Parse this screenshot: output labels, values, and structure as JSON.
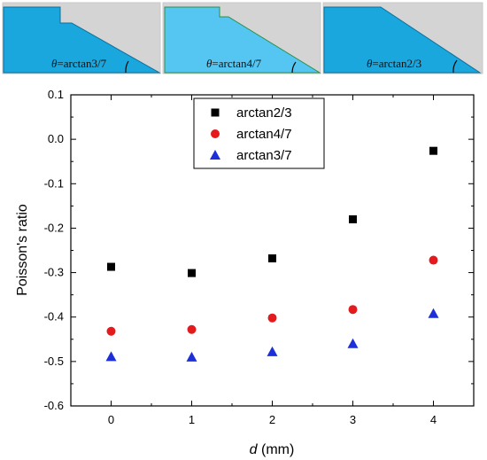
{
  "panels": [
    {
      "label_symbol": "θ",
      "label_text": "=arctan3/7",
      "fill": "#1aa7dd"
    },
    {
      "label_symbol": "θ",
      "label_text": "=arctan4/7",
      "fill": "#55c6f2"
    },
    {
      "label_symbol": "θ",
      "label_text": "=arctan2/3",
      "fill": "#1aa7dd"
    }
  ],
  "chart_data": {
    "type": "scatter",
    "xlabel_symbol": "d",
    "xlabel_unit": " (mm)",
    "ylabel": "Poisson's ratio",
    "xlim": [
      -0.5,
      4.5
    ],
    "ylim": [
      -0.6,
      0.1
    ],
    "x": [
      0,
      1,
      2,
      3,
      4
    ],
    "xticks": [
      "0",
      "1",
      "2",
      "3",
      "4"
    ],
    "yticks": [
      "0.1",
      "0.0",
      "-0.1",
      "-0.2",
      "-0.3",
      "-0.4",
      "-0.5",
      "-0.6"
    ],
    "yticks_values": [
      0.1,
      0.0,
      -0.1,
      -0.2,
      -0.3,
      -0.4,
      -0.5,
      -0.6
    ],
    "grid": false,
    "legend_position": "top-center",
    "series": [
      {
        "name": "arctan2/3",
        "marker": "square",
        "color": "#000000",
        "values": [
          -0.287,
          -0.301,
          -0.268,
          -0.18,
          -0.026
        ]
      },
      {
        "name": "arctan4/7",
        "marker": "circle",
        "color": "#e41a1c",
        "values": [
          -0.432,
          -0.428,
          -0.402,
          -0.383,
          -0.272
        ]
      },
      {
        "name": "arctan3/7",
        "marker": "triangle",
        "color": "#1c2fd8",
        "values": [
          -0.489,
          -0.49,
          -0.478,
          -0.46,
          -0.392
        ]
      }
    ]
  }
}
